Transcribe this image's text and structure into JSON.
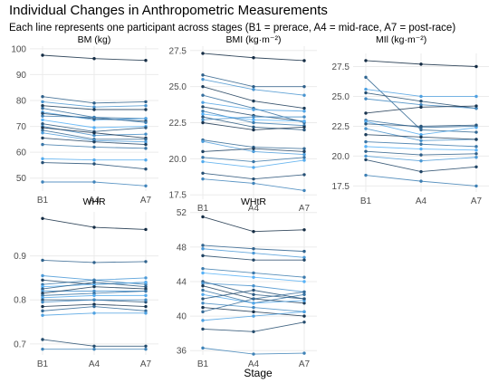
{
  "title": "Individual Changes in Anthropometric Measurements",
  "subtitle": "Each line represents one participant across stages (B1 = prerace, A4 = mid-race, A7 = post-race)",
  "xlabel": "Stage",
  "colors": {
    "dark": "#132b43",
    "light": "#56b1f7",
    "grid": "#ebebeb",
    "text": "#4d4d4d"
  },
  "chart_data": [
    {
      "type": "line",
      "title": "BM (kg)",
      "categories": [
        "B1",
        "A4",
        "A7"
      ],
      "ylim": [
        45,
        101
      ],
      "yticks": [
        50,
        60,
        70,
        80,
        90,
        100
      ],
      "series": [
        {
          "values": [
            97.5,
            96.2,
            95.5
          ]
        },
        {
          "values": [
            81.5,
            79.0,
            79.5
          ]
        },
        {
          "values": [
            79.5,
            77.5,
            78.0
          ]
        },
        {
          "values": [
            78.0,
            76.5,
            76.5
          ]
        },
        {
          "values": [
            77.0,
            73.5,
            73.0
          ]
        },
        {
          "values": [
            75.5,
            72.5,
            73.0
          ]
        },
        {
          "values": [
            75.0,
            73.0,
            72.0
          ]
        },
        {
          "values": [
            74.0,
            73.5,
            71.5
          ]
        },
        {
          "values": [
            72.5,
            69.5,
            70.0
          ]
        },
        {
          "values": [
            71.0,
            68.0,
            69.5
          ]
        },
        {
          "values": [
            70.0,
            66.5,
            67.0
          ]
        },
        {
          "values": [
            69.5,
            67.5,
            65.5
          ]
        },
        {
          "values": [
            68.5,
            65.0,
            65.0
          ]
        },
        {
          "values": [
            67.5,
            64.5,
            64.0
          ]
        },
        {
          "values": [
            65.5,
            64.0,
            63.0
          ]
        },
        {
          "values": [
            63.0,
            62.0,
            61.5
          ]
        },
        {
          "values": [
            57.5,
            57.0,
            57.0
          ]
        },
        {
          "values": [
            56.0,
            55.5,
            53.5
          ]
        },
        {
          "values": [
            48.5,
            48.5,
            47.0
          ]
        }
      ]
    },
    {
      "type": "line",
      "title": "BMI (kg·m⁻²)",
      "categories": [
        "B1",
        "A4",
        "A7"
      ],
      "ylim": [
        17.2,
        27.8
      ],
      "yticks": [
        17.5,
        20.0,
        22.5,
        25.0,
        27.5
      ],
      "series": [
        {
          "values": [
            27.3,
            27.0,
            26.8
          ]
        },
        {
          "values": [
            25.8,
            25.0,
            25.0
          ]
        },
        {
          "values": [
            25.5,
            24.8,
            24.4
          ]
        },
        {
          "values": [
            25.0,
            24.0,
            23.5
          ]
        },
        {
          "values": [
            24.4,
            23.5,
            22.5
          ]
        },
        {
          "values": [
            23.9,
            23.4,
            23.3
          ]
        },
        {
          "values": [
            23.6,
            23.0,
            22.6
          ]
        },
        {
          "values": [
            23.3,
            22.5,
            22.3
          ]
        },
        {
          "values": [
            23.1,
            22.7,
            22.6
          ]
        },
        {
          "values": [
            22.9,
            22.2,
            22.0
          ]
        },
        {
          "values": [
            22.7,
            22.9,
            22.9
          ]
        },
        {
          "values": [
            22.5,
            22.0,
            22.2
          ]
        },
        {
          "values": [
            21.3,
            20.8,
            20.7
          ]
        },
        {
          "values": [
            21.2,
            20.5,
            20.3
          ]
        },
        {
          "values": [
            20.5,
            20.7,
            20.5
          ]
        },
        {
          "values": [
            20.1,
            19.8,
            20.1
          ]
        },
        {
          "values": [
            19.8,
            19.4,
            19.9
          ]
        },
        {
          "values": [
            19.0,
            18.6,
            18.9
          ]
        },
        {
          "values": [
            18.6,
            18.3,
            17.8
          ]
        }
      ]
    },
    {
      "type": "line",
      "title": "MIl (kg·m⁻²)",
      "categories": [
        "B1",
        "A4",
        "A7"
      ],
      "ylim": [
        17.0,
        28.6
      ],
      "yticks": [
        17.5,
        20.0,
        22.5,
        25.0,
        27.5
      ],
      "series": [
        {
          "values": [
            28.0,
            27.7,
            27.5
          ]
        },
        {
          "values": [
            26.6,
            22.2,
            22.0
          ]
        },
        {
          "values": [
            25.6,
            25.0,
            25.0
          ]
        },
        {
          "values": [
            25.3,
            24.6,
            24.0
          ]
        },
        {
          "values": [
            24.8,
            24.3,
            24.0
          ]
        },
        {
          "values": [
            23.6,
            24.1,
            24.2
          ]
        },
        {
          "values": [
            23.0,
            22.4,
            22.5
          ]
        },
        {
          "values": [
            22.9,
            21.8,
            22.4
          ]
        },
        {
          "values": [
            22.7,
            22.5,
            22.6
          ]
        },
        {
          "values": [
            22.3,
            21.3,
            21.4
          ]
        },
        {
          "values": [
            21.8,
            21.6,
            21.4
          ]
        },
        {
          "values": [
            21.2,
            21.0,
            20.8
          ]
        },
        {
          "values": [
            20.8,
            20.6,
            20.5
          ]
        },
        {
          "values": [
            20.4,
            20.1,
            20.2
          ]
        },
        {
          "values": [
            20.0,
            19.6,
            19.9
          ]
        },
        {
          "values": [
            19.7,
            18.7,
            19.1
          ]
        },
        {
          "values": [
            18.4,
            17.9,
            17.5
          ]
        }
      ]
    },
    {
      "type": "line",
      "title": "WHR",
      "categories": [
        "B1",
        "A4",
        "A7"
      ],
      "ylim": [
        0.675,
        1.0
      ],
      "yticks": [
        0.7,
        0.8,
        0.9
      ],
      "series": [
        {
          "values": [
            0.985,
            0.965,
            0.96
          ]
        },
        {
          "values": [
            0.89,
            0.885,
            0.887
          ]
        },
        {
          "values": [
            0.855,
            0.845,
            0.85
          ]
        },
        {
          "values": [
            0.845,
            0.835,
            0.84
          ]
        },
        {
          "values": [
            0.835,
            0.845,
            0.835
          ]
        },
        {
          "values": [
            0.83,
            0.835,
            0.84
          ]
        },
        {
          "values": [
            0.825,
            0.84,
            0.83
          ]
        },
        {
          "values": [
            0.82,
            0.82,
            0.82
          ]
        },
        {
          "values": [
            0.815,
            0.83,
            0.825
          ]
        },
        {
          "values": [
            0.81,
            0.815,
            0.82
          ]
        },
        {
          "values": [
            0.805,
            0.81,
            0.81
          ]
        },
        {
          "values": [
            0.8,
            0.8,
            0.795
          ]
        },
        {
          "values": [
            0.795,
            0.8,
            0.8
          ]
        },
        {
          "values": [
            0.785,
            0.79,
            0.785
          ]
        },
        {
          "values": [
            0.775,
            0.785,
            0.775
          ]
        },
        {
          "values": [
            0.765,
            0.77,
            0.77
          ]
        },
        {
          "values": [
            0.71,
            0.695,
            0.695
          ]
        },
        {
          "values": [
            0.688,
            0.688,
            0.688
          ]
        }
      ]
    },
    {
      "type": "line",
      "title": "WHtR",
      "categories": [
        "B1",
        "A4",
        "A7"
      ],
      "ylim": [
        35.5,
        52.6
      ],
      "yticks": [
        36,
        40,
        44,
        48,
        52
      ],
      "series": [
        {
          "values": [
            51.5,
            49.8,
            50.0
          ]
        },
        {
          "values": [
            48.2,
            47.8,
            47.5
          ]
        },
        {
          "values": [
            47.8,
            47.3,
            46.8
          ]
        },
        {
          "values": [
            47.0,
            46.5,
            46.5
          ]
        },
        {
          "values": [
            45.5,
            45.0,
            44.5
          ]
        },
        {
          "values": [
            45.0,
            44.5,
            44.0
          ]
        },
        {
          "values": [
            44.0,
            42.5,
            42.0
          ]
        },
        {
          "values": [
            43.8,
            43.5,
            42.8
          ]
        },
        {
          "values": [
            43.5,
            42.0,
            41.5
          ]
        },
        {
          "values": [
            43.0,
            41.5,
            42.5
          ]
        },
        {
          "values": [
            42.5,
            41.5,
            41.8
          ]
        },
        {
          "values": [
            42.0,
            43.0,
            42.0
          ]
        },
        {
          "values": [
            41.5,
            41.0,
            40.5
          ]
        },
        {
          "values": [
            41.0,
            40.5,
            40.0
          ]
        },
        {
          "values": [
            40.5,
            42.0,
            42.8
          ]
        },
        {
          "values": [
            39.5,
            40.0,
            40.5
          ]
        },
        {
          "values": [
            38.5,
            38.2,
            39.3
          ]
        },
        {
          "values": [
            36.3,
            35.6,
            35.7
          ]
        }
      ]
    }
  ]
}
